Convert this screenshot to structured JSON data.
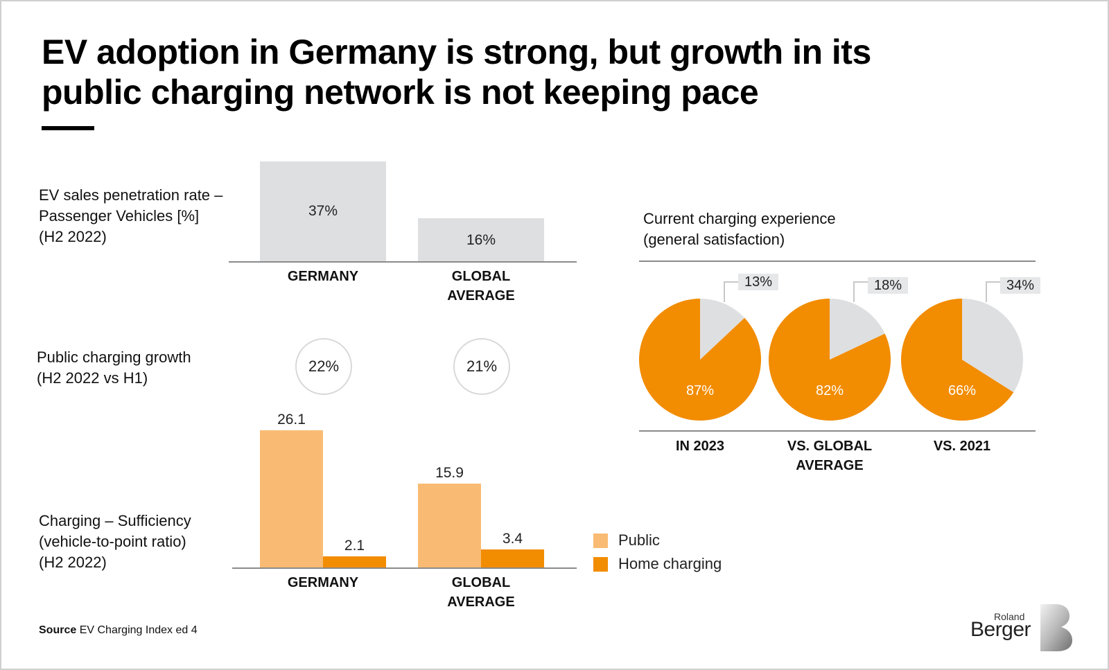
{
  "title": "EV adoption in Germany is strong, but growth in its public charging network is not keeping pace",
  "colors": {
    "gray_bar": "#dedfe0",
    "public": "#f9bb73",
    "home": "#f28c00",
    "pie_orange": "#f28c00",
    "pie_gray": "#dedfe0",
    "label_bg": "#e6e7e8"
  },
  "chart_data": [
    {
      "id": "penetration",
      "type": "bar",
      "title": "EV sales penetration rate –\nPassenger Vehicles [%]\n(H2 2022)",
      "categories": [
        "GERMANY",
        "GLOBAL\nAVERAGE"
      ],
      "values": [
        37,
        16
      ],
      "value_labels": [
        "37%",
        "16%"
      ],
      "ylim": [
        0,
        37
      ]
    },
    {
      "id": "growth",
      "type": "table",
      "title": "Public charging growth\n(H2 2022 vs H1)",
      "categories": [
        "GERMANY",
        "GLOBAL AVERAGE"
      ],
      "values": [
        22,
        21
      ],
      "value_labels": [
        "22%",
        "21%"
      ]
    },
    {
      "id": "sufficiency",
      "type": "bar",
      "title": "Charging – Sufficiency\n(vehicle-to-point ratio)\n(H2 2022)",
      "categories": [
        "GERMANY",
        "GLOBAL\nAVERAGE"
      ],
      "series": [
        {
          "name": "Public",
          "values": [
            26.1,
            15.9
          ],
          "value_labels": [
            "26.1",
            "15.9"
          ]
        },
        {
          "name": "Home charging",
          "values": [
            2.1,
            3.4
          ],
          "value_labels": [
            "2.1",
            "3.4"
          ]
        }
      ],
      "ylim": [
        0,
        26.1
      ]
    },
    {
      "id": "satisfaction",
      "type": "pie",
      "title": "Current charging experience\n(general satisfaction)",
      "pies": [
        {
          "label": "IN 2023",
          "values": [
            87,
            13
          ],
          "value_labels": [
            "87%",
            "13%"
          ]
        },
        {
          "label": "VS. GLOBAL\nAVERAGE",
          "values": [
            82,
            18
          ],
          "value_labels": [
            "82%",
            "18%"
          ]
        },
        {
          "label": "VS. 2021",
          "values": [
            66,
            34
          ],
          "value_labels": [
            "66%",
            "34%"
          ]
        }
      ]
    }
  ],
  "source": {
    "label": "Source",
    "text": "EV Charging Index ed 4"
  },
  "logo": {
    "line1": "Roland",
    "line2": "Berger"
  }
}
